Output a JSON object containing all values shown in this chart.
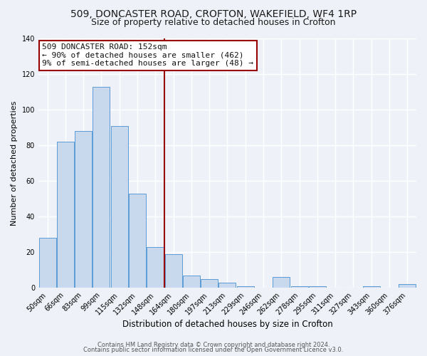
{
  "title": "509, DONCASTER ROAD, CROFTON, WAKEFIELD, WF4 1RP",
  "subtitle": "Size of property relative to detached houses in Crofton",
  "xlabel": "Distribution of detached houses by size in Crofton",
  "ylabel": "Number of detached properties",
  "bar_labels": [
    "50sqm",
    "66sqm",
    "83sqm",
    "99sqm",
    "115sqm",
    "132sqm",
    "148sqm",
    "164sqm",
    "180sqm",
    "197sqm",
    "213sqm",
    "229sqm",
    "246sqm",
    "262sqm",
    "278sqm",
    "295sqm",
    "311sqm",
    "327sqm",
    "343sqm",
    "360sqm",
    "376sqm"
  ],
  "bar_values": [
    28,
    82,
    88,
    113,
    91,
    53,
    23,
    19,
    7,
    5,
    3,
    1,
    0,
    6,
    1,
    1,
    0,
    0,
    1,
    0,
    2
  ],
  "bar_color": "#c8d9ed",
  "bar_edgecolor": "#5b9bd5",
  "vline_x": 7.0,
  "vline_color": "#990000",
  "ylim": [
    0,
    140
  ],
  "yticks": [
    0,
    20,
    40,
    60,
    80,
    100,
    120,
    140
  ],
  "annotation_title": "509 DONCASTER ROAD: 152sqm",
  "annotation_line1": "← 90% of detached houses are smaller (462)",
  "annotation_line2": "9% of semi-detached houses are larger (48) →",
  "annotation_box_color": "#ffffff",
  "annotation_box_edgecolor": "#990000",
  "footer1": "Contains HM Land Registry data © Crown copyright and database right 2024.",
  "footer2": "Contains public sector information licensed under the Open Government Licence v3.0.",
  "background_color": "#eef2f8",
  "grid_color": "#ffffff",
  "title_fontsize": 10,
  "subtitle_fontsize": 9,
  "xlabel_fontsize": 8.5,
  "ylabel_fontsize": 8,
  "tick_fontsize": 7,
  "annotation_fontsize": 8,
  "footer_fontsize": 6
}
